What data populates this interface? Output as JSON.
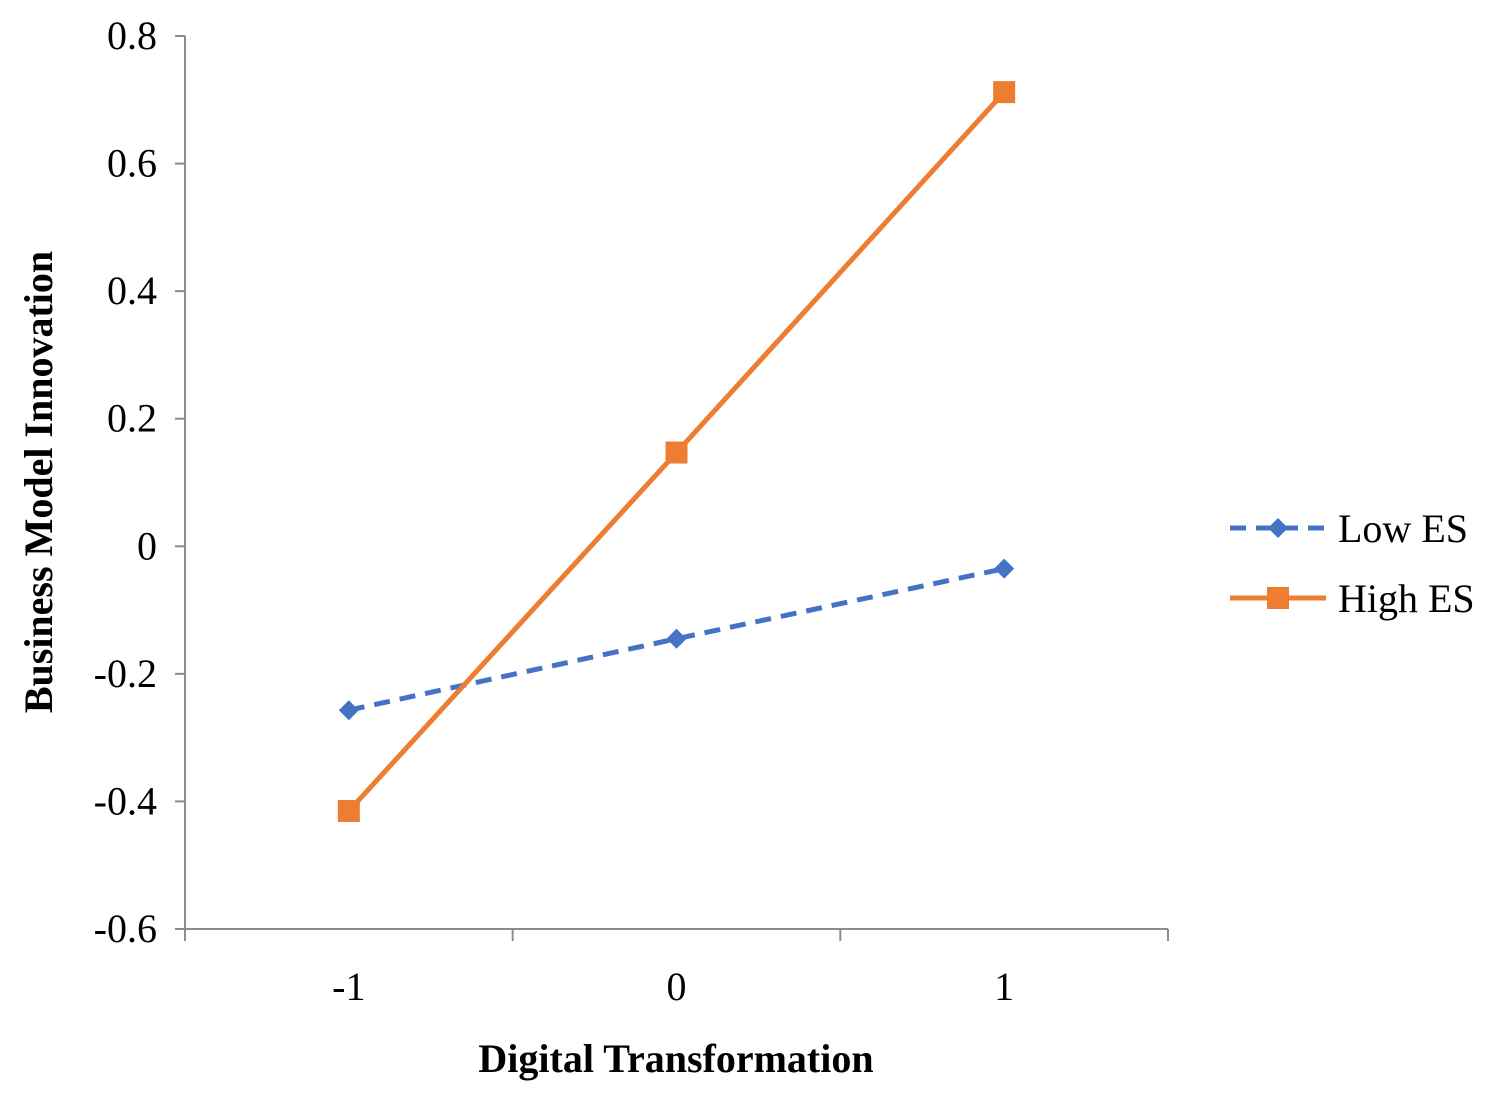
{
  "chart_data": {
    "type": "line",
    "xlabel": "Digital Transformation",
    "ylabel": "Business Model Innovation",
    "categories": [
      "-1",
      "0",
      "1"
    ],
    "x": [
      -1,
      0,
      1
    ],
    "xlim": [
      -1.5,
      1.5
    ],
    "ylim": [
      -0.6,
      0.8
    ],
    "yticks": [
      -0.6,
      -0.4,
      -0.2,
      0,
      0.2,
      0.4,
      0.6,
      0.8
    ],
    "ytick_labels": [
      "-0.6",
      "-0.4",
      "-0.2",
      "0",
      "0.2",
      "0.4",
      "0.6",
      "0.8"
    ],
    "grid": false,
    "legend_position": "right",
    "series": [
      {
        "name": "Low ES",
        "values": [
          -0.257,
          -0.145,
          -0.035
        ],
        "color": "#4472C4",
        "line_style": "dashed",
        "marker": "diamond"
      },
      {
        "name": "High ES",
        "values": [
          -0.415,
          0.147,
          0.712
        ],
        "color": "#ED7D31",
        "line_style": "solid",
        "marker": "square"
      }
    ]
  }
}
